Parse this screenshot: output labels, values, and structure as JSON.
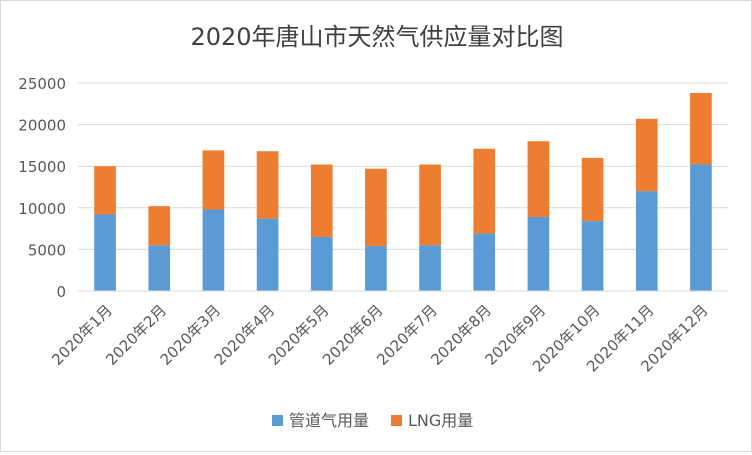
{
  "chart_data": {
    "type": "bar",
    "stacked": true,
    "title": "2020年唐山市天然气供应量对比图",
    "categories": [
      "2020年1月",
      "2020年2月",
      "2020年3月",
      "2020年4月",
      "2020年5月",
      "2020年6月",
      "2020年7月",
      "2020年8月",
      "2020年9月",
      "2020年10月",
      "2020年11月",
      "2020年12月"
    ],
    "series": [
      {
        "name": "管道气用量",
        "color": "#5b9bd5",
        "values": [
          9200,
          5500,
          9800,
          8700,
          6500,
          5400,
          5500,
          6900,
          8900,
          8400,
          12000,
          15200
        ]
      },
      {
        "name": "LNG用量",
        "color": "#ed7d31",
        "values": [
          5800,
          4700,
          7100,
          8100,
          8700,
          9300,
          9700,
          10200,
          9100,
          7600,
          8700,
          8600
        ]
      }
    ],
    "yticks": [
      "0",
      "5000",
      "10000",
      "15000",
      "20000",
      "25000"
    ],
    "ylim": [
      0,
      25000
    ],
    "grid": true,
    "legend_position": "bottom"
  }
}
